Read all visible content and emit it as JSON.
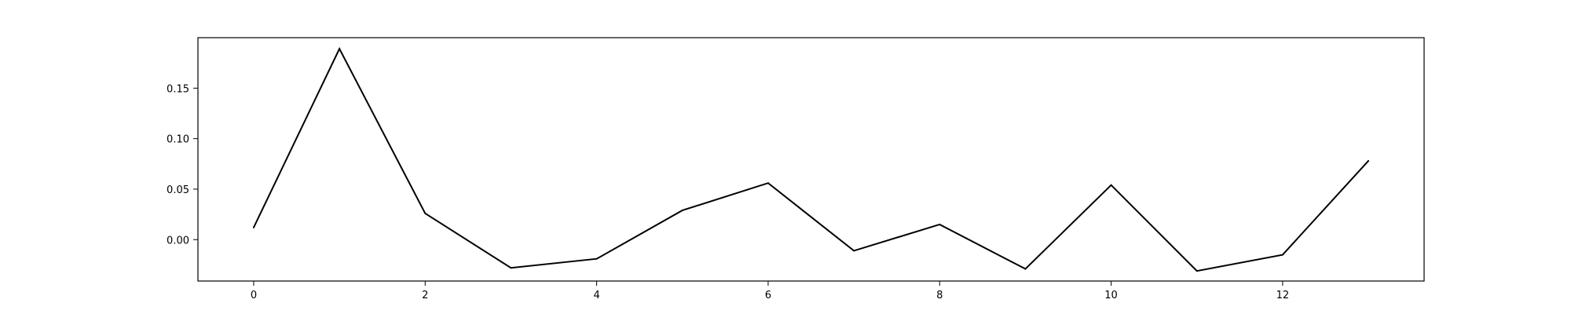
{
  "chart_data": {
    "type": "line",
    "x": [
      0,
      1,
      2,
      3,
      4,
      5,
      6,
      7,
      8,
      9,
      10,
      11,
      12,
      13
    ],
    "series": [
      {
        "values": [
          0.012,
          0.189,
          0.026,
          -0.028,
          -0.019,
          0.029,
          0.056,
          -0.011,
          0.015,
          -0.029,
          0.054,
          -0.031,
          -0.015,
          0.078
        ],
        "color": "#000000"
      }
    ],
    "xlim": [
      -0.65,
      13.65
    ],
    "ylim": [
      -0.041,
      0.2
    ],
    "xticks": [
      0,
      2,
      4,
      6,
      8,
      10,
      12
    ],
    "xtick_labels": [
      "0",
      "2",
      "4",
      "6",
      "8",
      "10",
      "12"
    ],
    "yticks": [
      0.0,
      0.05,
      0.1,
      0.15
    ],
    "ytick_labels": [
      "0.00",
      "0.05",
      "0.10",
      "0.15"
    ],
    "grid": false,
    "legend": "none"
  }
}
